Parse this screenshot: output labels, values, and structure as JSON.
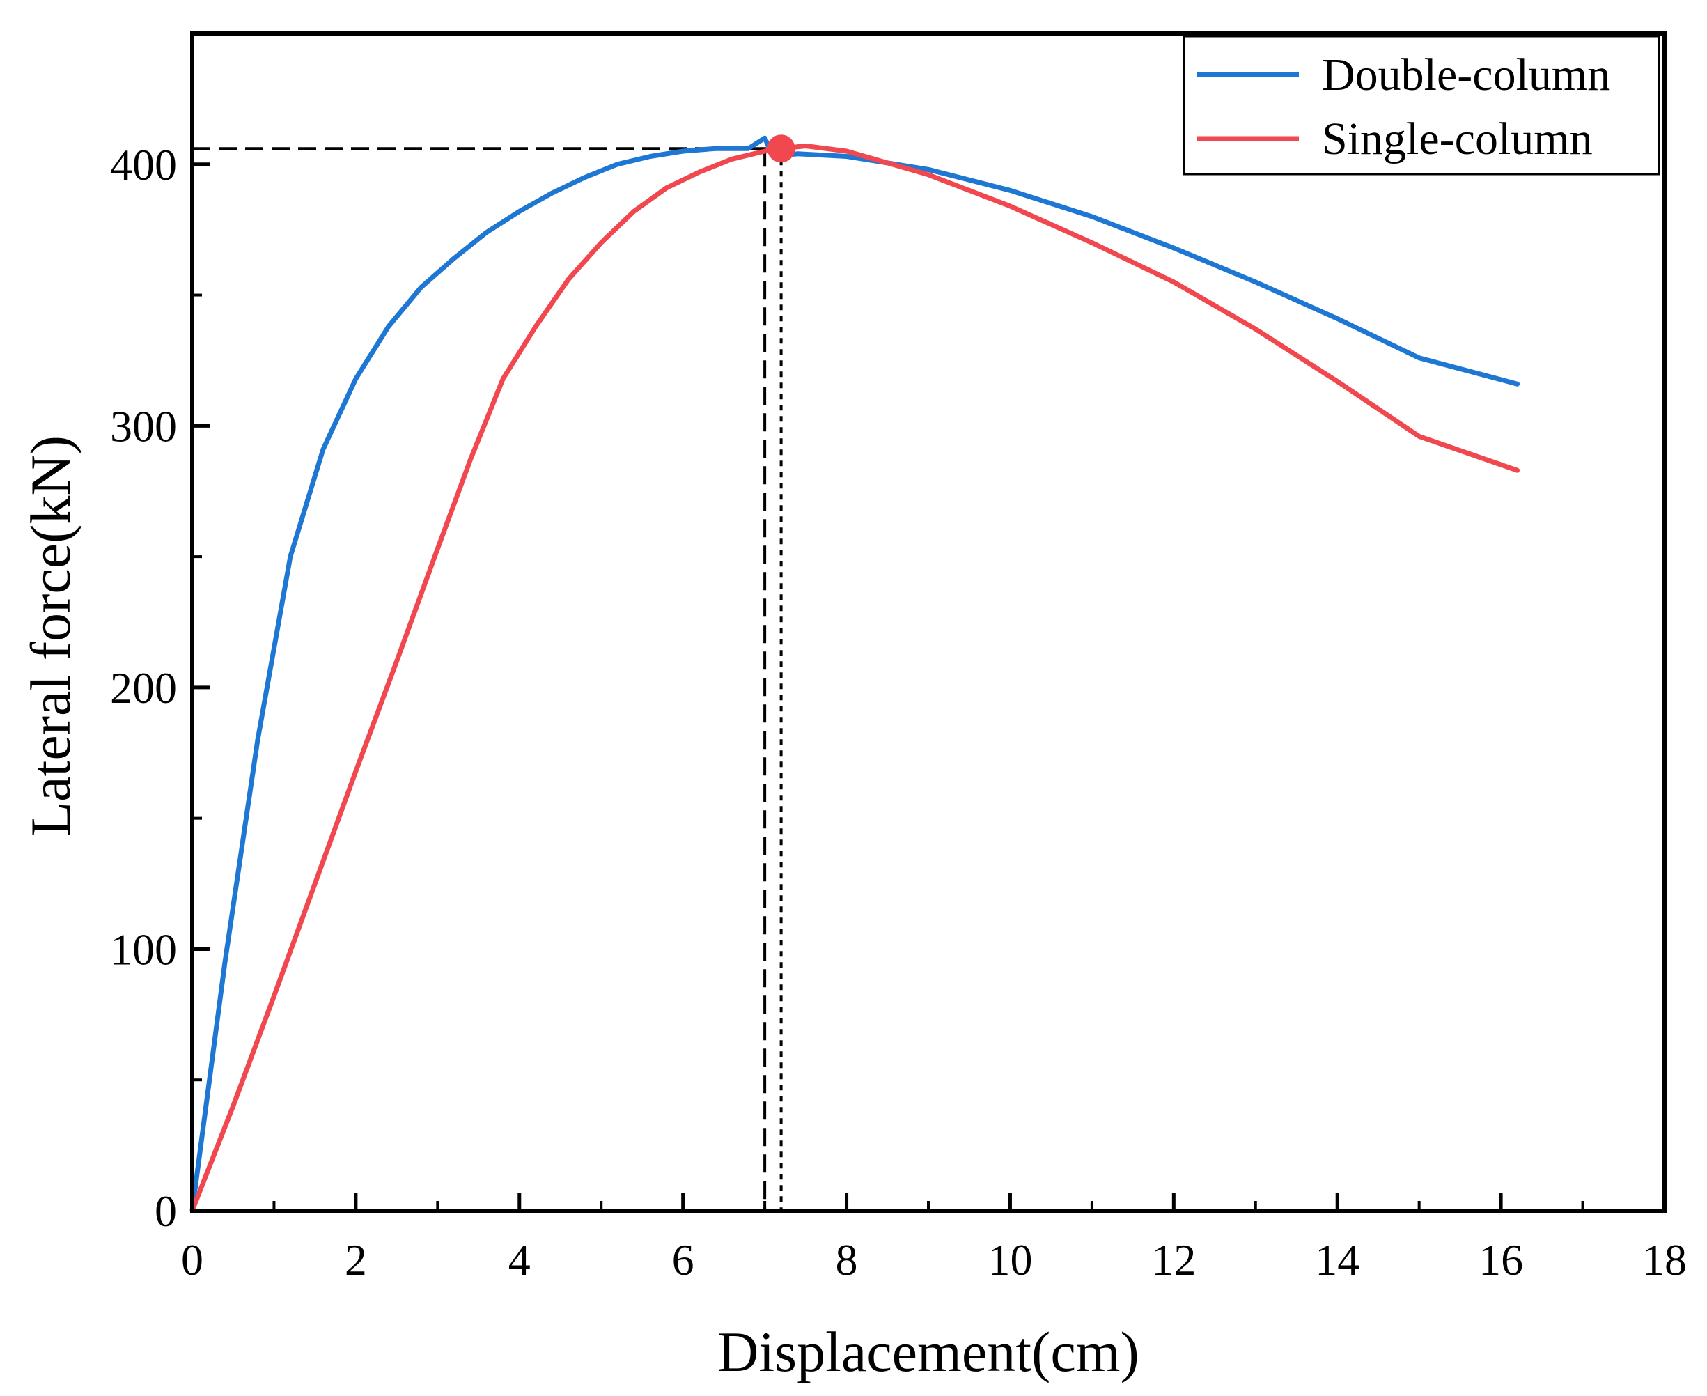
{
  "chart_data": {
    "type": "line",
    "title": "",
    "xlabel": "Displacement(cm)",
    "ylabel": "Lateral force(kN)",
    "xlim": [
      0,
      18
    ],
    "ylim": [
      0,
      450
    ],
    "x_ticks": [
      0,
      2,
      4,
      6,
      8,
      10,
      12,
      14,
      16,
      18
    ],
    "x_tick_labels": [
      "0",
      "2",
      "4",
      "6",
      "8",
      "10",
      "12",
      "14",
      "16",
      "18"
    ],
    "y_ticks": [
      0,
      100,
      200,
      300,
      400
    ],
    "y_tick_labels": [
      "0",
      "100",
      "200",
      "300",
      "400"
    ],
    "grid": false,
    "legend_position": "top-right",
    "series": [
      {
        "name": "Double-column",
        "color": "#1f77d4",
        "x": [
          0,
          0.4,
          0.8,
          1.2,
          1.6,
          2.0,
          2.4,
          2.8,
          3.2,
          3.6,
          4.0,
          4.4,
          4.8,
          5.2,
          5.6,
          6.0,
          6.4,
          6.8,
          7.0,
          7.1,
          7.4,
          8.0,
          9.0,
          10.0,
          11.0,
          12.0,
          13.0,
          14.0,
          15.0,
          16.2
        ],
        "y": [
          0,
          95,
          180,
          250,
          291,
          318,
          338,
          353,
          364,
          374,
          382,
          389,
          395,
          400,
          403,
          405,
          406,
          406,
          410,
          403,
          404,
          403,
          398,
          390,
          380,
          368,
          355,
          341,
          326,
          316
        ]
      },
      {
        "name": "Single-column",
        "color": "#f0484e",
        "x": [
          0,
          0.5,
          1.0,
          1.5,
          2.0,
          2.5,
          3.0,
          3.4,
          3.8,
          4.2,
          4.6,
          5.0,
          5.4,
          5.8,
          6.2,
          6.6,
          7.0,
          7.2,
          7.5,
          8.0,
          9.0,
          10.0,
          11.0,
          12.0,
          13.0,
          14.0,
          15.0,
          16.2
        ],
        "y": [
          0,
          40,
          82,
          125,
          168,
          210,
          253,
          287,
          318,
          338,
          356,
          370,
          382,
          391,
          397,
          402,
          405,
          406,
          407,
          405,
          396,
          384,
          370,
          355,
          337,
          317,
          296,
          283
        ]
      }
    ],
    "annotations": {
      "peak_marker": {
        "x": 7.2,
        "y": 406,
        "color": "#f0484e"
      },
      "dashed_horizontal_y": 406,
      "dashed_vertical_x": 7.0,
      "dotted_vertical_x": 7.2
    }
  }
}
